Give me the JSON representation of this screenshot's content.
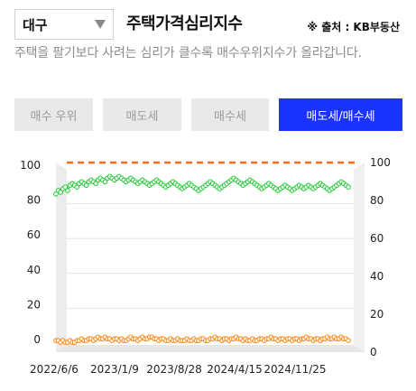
{
  "header": {
    "region": "대구",
    "title": "주택가격심리지수",
    "source": "※ 출처 : KB부동산"
  },
  "description": "주택을 팔기보다 사려는 심리가 클수록 매수우위지수가 올라갑니다.",
  "buttons": [
    {
      "label": "매수 우위",
      "active": false
    },
    {
      "label": "매도세",
      "active": false
    },
    {
      "label": "매수세",
      "active": false
    },
    {
      "label": "매도세/매수세",
      "active": true
    }
  ],
  "colors": {
    "accent": "#1a33ff",
    "sell_series": "#2ecc40",
    "buy_series": "#ff8c1a",
    "reference_line": "#ff6a1a"
  },
  "chart_data": {
    "type": "line",
    "x_ticks": [
      "2022/6/6",
      "2023/1/9",
      "2023/8/28",
      "2024/4/15",
      "2024/11/25"
    ],
    "left_axis_ticks": [
      "100",
      "80",
      "60",
      "40",
      "20",
      "0"
    ],
    "right_axis_ticks": [
      "100",
      "80",
      "60",
      "40",
      "20",
      "0"
    ],
    "ylim": [
      0,
      100
    ],
    "reference_value": 100,
    "series": [
      {
        "key": "sell",
        "values": [
          83,
          85,
          84,
          86,
          87,
          85,
          88,
          89,
          88,
          87,
          89,
          90,
          89,
          88,
          90,
          91,
          90,
          89,
          91,
          92,
          91,
          90,
          92,
          93,
          92,
          91,
          92,
          93,
          92,
          91,
          90,
          91,
          92,
          91,
          90,
          89,
          90,
          91,
          90,
          89,
          88,
          89,
          90,
          91,
          90,
          89,
          88,
          87,
          88,
          89,
          90,
          89,
          88,
          87,
          86,
          87,
          88,
          89,
          88,
          87,
          86,
          85,
          86,
          87,
          88,
          89,
          90,
          89,
          88,
          87,
          86,
          87,
          88,
          89,
          90,
          91,
          92,
          91,
          90,
          89,
          88,
          89,
          90,
          91,
          90,
          89,
          88,
          87,
          86,
          87,
          88,
          89,
          88,
          87,
          86,
          85,
          86,
          87,
          88,
          87,
          86,
          85,
          86,
          87,
          88,
          87,
          86,
          87,
          88,
          87,
          86,
          87,
          88,
          89,
          88,
          87,
          86,
          85,
          86,
          87,
          88,
          89,
          90,
          89,
          88,
          87
        ]
      },
      {
        "key": "buy",
        "values": [
          2,
          2,
          1,
          2,
          1,
          1,
          2,
          1,
          1,
          2,
          2,
          3,
          2,
          2,
          3,
          3,
          2,
          3,
          4,
          3,
          3,
          4,
          3,
          3,
          2,
          3,
          3,
          2,
          3,
          2,
          2,
          3,
          4,
          3,
          3,
          2,
          3,
          4,
          3,
          3,
          4,
          4,
          3,
          3,
          2,
          3,
          3,
          2,
          2,
          3,
          2,
          2,
          3,
          2,
          2,
          2,
          3,
          2,
          2,
          3,
          2,
          2,
          3,
          3,
          2,
          2,
          3,
          3,
          4,
          3,
          3,
          2,
          3,
          3,
          2,
          3,
          3,
          4,
          3,
          3,
          2,
          3,
          2,
          2,
          3,
          2,
          2,
          3,
          3,
          2,
          3,
          3,
          4,
          3,
          3,
          2,
          3,
          3,
          2,
          3,
          3,
          2,
          3,
          3,
          2,
          3,
          3,
          4,
          3,
          3,
          2,
          3,
          3,
          2,
          3,
          3,
          4,
          3,
          3,
          4,
          3,
          3,
          4,
          3,
          3,
          2
        ]
      }
    ]
  }
}
